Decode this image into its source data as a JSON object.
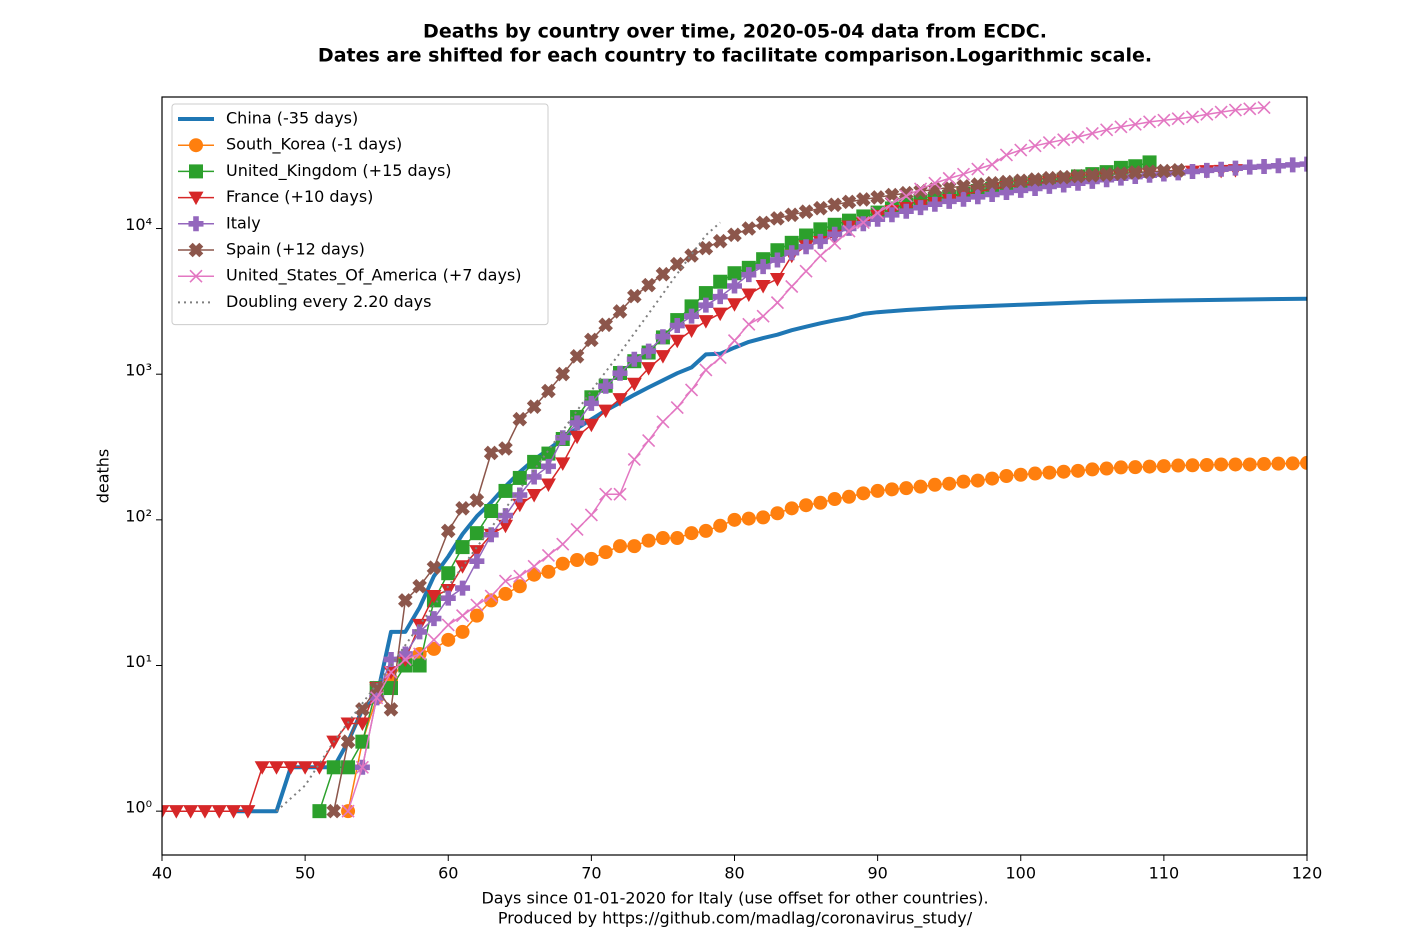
{
  "chart_data": {
    "type": "line",
    "title": "Deaths by country over time, 2020-05-04 data from ECDC.",
    "subtitle": "Dates are shifted for each country to facilitate comparison.Logarithmic scale.",
    "xlabel": "Days since 01-01-2020 for Italy (use offset for other countries).",
    "xlabel2": "Produced by https://github.com/madlag/coronavirus_study/",
    "ylabel": "deaths",
    "xlim": [
      40,
      120
    ],
    "xticks": [
      40,
      50,
      60,
      70,
      80,
      90,
      100,
      110,
      120
    ],
    "ylim": [
      0.5,
      80000
    ],
    "yticks": [
      {
        "value": 1,
        "label": "10⁰"
      },
      {
        "value": 10,
        "label": "10¹"
      },
      {
        "value": 100,
        "label": "10²"
      },
      {
        "value": 1000,
        "label": "10³"
      },
      {
        "value": 10000,
        "label": "10⁴"
      }
    ],
    "log_y": true,
    "grid": false,
    "legend": "upper left",
    "series": [
      {
        "name": "China (-35 days)",
        "color": "#1f77b4",
        "x": [
          45,
          46,
          47,
          48,
          49,
          50,
          51,
          52,
          53,
          54,
          55,
          56,
          57,
          58,
          59,
          60,
          61,
          62,
          63,
          64,
          65,
          66,
          67,
          68,
          69,
          70,
          71,
          72,
          73,
          74,
          75,
          76,
          77,
          78,
          79,
          80,
          81,
          82,
          83,
          84,
          85,
          86,
          87,
          88,
          89,
          90,
          92,
          95,
          100,
          105,
          110,
          115,
          120
        ],
        "values": [
          1,
          1,
          1,
          1,
          2,
          2,
          2,
          2,
          3,
          5,
          6,
          17,
          17,
          25,
          41,
          56,
          80,
          106,
          132,
          170,
          213,
          259,
          304,
          361,
          425,
          490,
          563,
          636,
          722,
          811,
          908,
          1016,
          1113,
          1368,
          1380,
          1523,
          1665,
          1770,
          1868,
          2004,
          2118,
          2236,
          2345,
          2442,
          2592,
          2663,
          2760,
          2870,
          3000,
          3130,
          3200,
          3250,
          3300
        ]
      },
      {
        "name": "South_Korea (-1 days)",
        "color": "#ff7f0e",
        "marker": "circle",
        "x": [
          53,
          54,
          55,
          56,
          57,
          58,
          59,
          60,
          61,
          62,
          63,
          64,
          65,
          66,
          67,
          68,
          69,
          70,
          71,
          72,
          73,
          74,
          75,
          76,
          77,
          78,
          79,
          80,
          81,
          82,
          83,
          84,
          85,
          86,
          87,
          88,
          89,
          90,
          91,
          92,
          93,
          94,
          95,
          96,
          97,
          98,
          99,
          100,
          101,
          102,
          103,
          104,
          105,
          106,
          107,
          108,
          109,
          110,
          111,
          112,
          113,
          114,
          115,
          116,
          117,
          118,
          119,
          120
        ],
        "values": [
          1,
          3,
          6,
          8,
          11,
          12,
          13,
          15,
          17,
          22,
          28,
          31,
          35,
          42,
          44,
          50,
          53,
          54,
          60,
          66,
          66,
          72,
          75,
          75,
          81,
          84,
          91,
          100,
          102,
          104,
          111,
          120,
          126,
          131,
          139,
          144,
          152,
          158,
          162,
          165,
          169,
          174,
          177,
          183,
          186,
          192,
          200,
          204,
          208,
          211,
          214,
          217,
          222,
          225,
          229,
          230,
          232,
          234,
          236,
          237,
          238,
          240,
          240,
          240,
          242,
          243,
          244,
          246
        ]
      },
      {
        "name": "United_Kingdom (+15 days)",
        "color": "#2ca02c",
        "marker": "square",
        "x": [
          51,
          52,
          53,
          54,
          55,
          56,
          57,
          58,
          59,
          60,
          61,
          62,
          63,
          64,
          65,
          66,
          67,
          68,
          69,
          70,
          71,
          72,
          73,
          74,
          75,
          76,
          77,
          78,
          79,
          80,
          81,
          82,
          83,
          84,
          85,
          86,
          87,
          88,
          89,
          90,
          91,
          92,
          93,
          94,
          95,
          96,
          97,
          98,
          99,
          100,
          101,
          102,
          103,
          104,
          105,
          106,
          107,
          108,
          109
        ],
        "values": [
          1,
          2,
          2,
          3,
          7,
          7,
          10,
          10,
          28,
          43,
          65,
          81,
          115,
          158,
          194,
          250,
          285,
          359,
          508,
          694,
          833,
          1019,
          1228,
          1408,
          1789,
          2352,
          2921,
          3605,
          4313,
          4934,
          5373,
          6159,
          7097,
          7978,
          8958,
          9875,
          10612,
          11329,
          12107,
          12868,
          13729,
          14576,
          15464,
          16060,
          16509,
          17337,
          18100,
          18738,
          19506,
          20319,
          20732,
          21092,
          21678,
          22792,
          23635,
          24393,
          26097,
          26771,
          28446
        ]
      },
      {
        "name": "France (+10 days)",
        "color": "#d62728",
        "marker": "triangle",
        "x": [
          40,
          41,
          42,
          43,
          44,
          45,
          46,
          47,
          48,
          49,
          50,
          51,
          52,
          53,
          54,
          55,
          56,
          57,
          58,
          59,
          60,
          61,
          62,
          63,
          64,
          65,
          66,
          67,
          68,
          69,
          70,
          71,
          72,
          73,
          74,
          75,
          76,
          77,
          78,
          79,
          80,
          81,
          82,
          83,
          84,
          85,
          86,
          87,
          88,
          89,
          90,
          91,
          92,
          93,
          94,
          95,
          96,
          97,
          98,
          99,
          100,
          101,
          102,
          103,
          104,
          105,
          106,
          107,
          108,
          109,
          110,
          111,
          112,
          113,
          114,
          115
        ],
        "values": [
          1,
          1,
          1,
          1,
          1,
          1,
          1,
          2,
          2,
          2,
          2,
          2,
          3,
          4,
          4,
          7,
          9,
          11,
          19,
          30,
          33,
          48,
          61,
          79,
          91,
          127,
          148,
          175,
          244,
          372,
          450,
          562,
          674,
          860,
          1100,
          1331,
          1696,
          1995,
          2314,
          2606,
          3024,
          3523,
          4032,
          4503,
          6507,
          7560,
          8078,
          8911,
          10328,
          10869,
          12210,
          13197,
          13832,
          14393,
          14967,
          15712,
          17148,
          17901,
          18681,
          19294,
          19718,
          20265,
          20796,
          21340,
          21856,
          22245,
          22614,
          22856,
          23293,
          23660,
          24087,
          24376,
          24594,
          24760,
          24895,
          25201
        ]
      },
      {
        "name": "Italy",
        "color": "#9467bd",
        "marker": "plus",
        "x": [
          54,
          55,
          56,
          57,
          58,
          59,
          60,
          61,
          62,
          63,
          64,
          65,
          66,
          67,
          68,
          69,
          70,
          71,
          72,
          73,
          74,
          75,
          76,
          77,
          78,
          79,
          80,
          81,
          82,
          83,
          84,
          85,
          86,
          87,
          88,
          89,
          90,
          91,
          92,
          93,
          94,
          95,
          96,
          97,
          98,
          99,
          100,
          101,
          102,
          103,
          104,
          105,
          106,
          107,
          108,
          109,
          110,
          111,
          112,
          113,
          114,
          115,
          116,
          117,
          118,
          119,
          120
        ],
        "values": [
          2,
          6,
          11,
          12,
          17,
          21,
          29,
          34,
          52,
          79,
          107,
          148,
          197,
          233,
          366,
          463,
          631,
          827,
          1016,
          1266,
          1441,
          1809,
          2158,
          2503,
          2978,
          3405,
          4032,
          4825,
          5476,
          6077,
          6820,
          7503,
          8165,
          9134,
          10023,
          10779,
          11591,
          12428,
          13155,
          13915,
          14681,
          15362,
          15887,
          16523,
          17127,
          17669,
          18279,
          18849,
          19468,
          19899,
          20465,
          21067,
          21645,
          22170,
          22745,
          23227,
          23660,
          24114,
          24648,
          25085,
          25549,
          25969,
          26384,
          26644,
          26977,
          27359,
          27682
        ]
      },
      {
        "name": "Spain (+12 days)",
        "color": "#8c564b",
        "marker": "xfilled",
        "x": [
          52,
          53,
          54,
          55,
          56,
          57,
          58,
          59,
          60,
          61,
          62,
          63,
          64,
          65,
          66,
          67,
          68,
          69,
          70,
          71,
          72,
          73,
          74,
          75,
          76,
          77,
          78,
          79,
          80,
          81,
          82,
          83,
          84,
          85,
          86,
          87,
          88,
          89,
          90,
          91,
          92,
          93,
          94,
          95,
          96,
          97,
          98,
          99,
          100,
          101,
          102,
          103,
          104,
          105,
          106,
          107,
          108,
          109,
          110,
          111
        ],
        "values": [
          1,
          3,
          5,
          7,
          5,
          28,
          35,
          47,
          84,
          120,
          136,
          288,
          309,
          491,
          598,
          767,
          1002,
          1326,
          1720,
          2182,
          2696,
          3434,
          4089,
          4858,
          5690,
          6528,
          7340,
          8189,
          9053,
          10003,
          10935,
          11744,
          12418,
          13055,
          13798,
          14555,
          15238,
          15843,
          16353,
          16972,
          17489,
          18056,
          18579,
          19130,
          19478,
          20043,
          20453,
          20852,
          21282,
          21717,
          22157,
          22524,
          22902,
          23190,
          23521,
          23822,
          24275,
          24543,
          24824,
          25100
        ]
      },
      {
        "name": "United_States_Of_America (+7 days)",
        "color": "#e377c2",
        "marker": "x",
        "x": [
          53,
          54,
          55,
          56,
          57,
          58,
          59,
          60,
          61,
          62,
          63,
          64,
          65,
          66,
          67,
          68,
          69,
          70,
          71,
          72,
          73,
          74,
          75,
          76,
          77,
          78,
          79,
          80,
          81,
          82,
          83,
          84,
          85,
          86,
          87,
          88,
          89,
          90,
          91,
          92,
          93,
          94,
          95,
          96,
          97,
          98,
          99,
          100,
          101,
          102,
          103,
          104,
          105,
          106,
          107,
          108,
          109,
          110,
          111,
          112,
          113,
          114,
          115,
          116,
          117
        ],
        "values": [
          1,
          2,
          6,
          9,
          11,
          12,
          15,
          19,
          22,
          26,
          30,
          38,
          41,
          48,
          57,
          68,
          86,
          108,
          150,
          150,
          260,
          350,
          471,
          590,
          780,
          1070,
          1300,
          1700,
          2200,
          2500,
          3100,
          4000,
          5100,
          6500,
          7900,
          9600,
          11000,
          12800,
          14800,
          16700,
          18700,
          20500,
          22100,
          23600,
          25600,
          27500,
          32000,
          34600,
          37000,
          38900,
          40700,
          42500,
          45000,
          47600,
          49900,
          51900,
          54000,
          55400,
          56800,
          58400,
          60800,
          63000,
          65100,
          66400,
          67700
        ]
      },
      {
        "name": "Doubling every 2.20 days",
        "color": "#7f7f7f",
        "linestyle": "dotted",
        "x": [
          48,
          50,
          52,
          54,
          56,
          58,
          60,
          62,
          64,
          66,
          68,
          70,
          72,
          74,
          76,
          78,
          79
        ],
        "values": [
          1,
          1.5,
          3,
          5.5,
          10,
          19,
          35,
          65,
          120,
          220,
          410,
          770,
          1400,
          2600,
          4900,
          9000,
          11000
        ]
      }
    ]
  }
}
